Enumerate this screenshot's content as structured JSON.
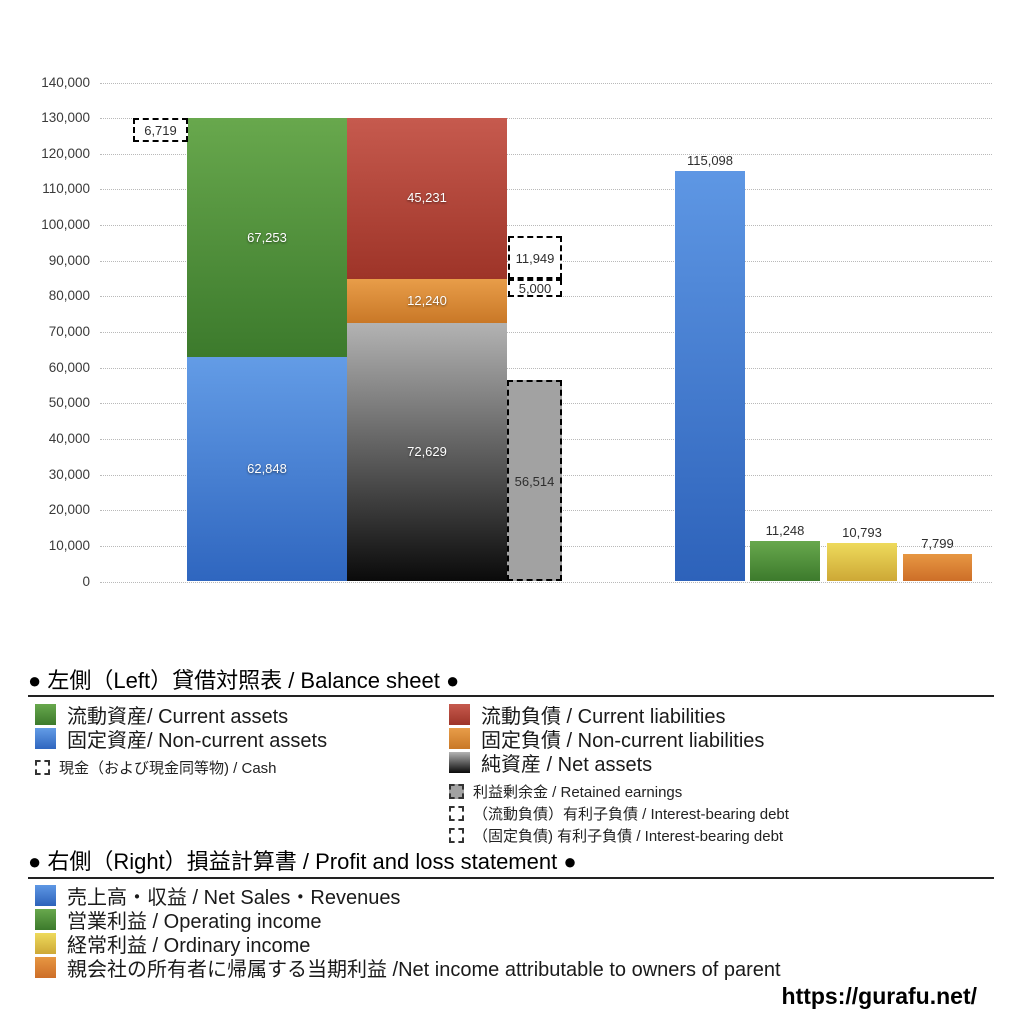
{
  "chart_data": {
    "type": "bar",
    "title": "",
    "y_axis": {
      "min": 0,
      "max": 140000,
      "step": 10000,
      "grid": "dotted",
      "tick_labels": [
        "0",
        "10,000",
        "20,000",
        "30,000",
        "40,000",
        "50,000",
        "60,000",
        "70,000",
        "80,000",
        "90,000",
        "100,000",
        "110,000",
        "120,000",
        "130,000",
        "140,000"
      ]
    },
    "balance_sheet": {
      "assets_stack_bottom_to_top": [
        {
          "key": "non_current_assets",
          "value": 62848
        },
        {
          "key": "current_assets",
          "value": 67253
        }
      ],
      "liabilities_stack_bottom_to_top": [
        {
          "key": "net_assets",
          "value": 72629
        },
        {
          "key": "non_current_liabilities",
          "value": 12240
        },
        {
          "key": "current_liabilities",
          "value": 45231
        }
      ],
      "annotations": [
        {
          "key": "cash",
          "value": 6719
        },
        {
          "key": "interest_bearing_debt_current",
          "value": 11949
        },
        {
          "key": "interest_bearing_debt_non_current",
          "value": 5000
        },
        {
          "key": "retained_earnings",
          "value": 56514
        }
      ]
    },
    "profit_and_loss": [
      {
        "key": "net_sales",
        "value": 115098
      },
      {
        "key": "operating_income",
        "value": 11248
      },
      {
        "key": "ordinary_income",
        "value": 10793
      },
      {
        "key": "net_income_parent",
        "value": 7799
      }
    ]
  },
  "colors": {
    "current_assets": [
      "#68a84d",
      "#3c7a2c"
    ],
    "non_current_assets": [
      "#639ce6",
      "#2f66bf"
    ],
    "current_liabilities": [
      "#c65a4e",
      "#9e3428"
    ],
    "non_current_liabilities": [
      "#e89d49",
      "#c97827"
    ],
    "net_assets": [
      "#b3b3b3",
      "#0a0a0a"
    ],
    "retained_earnings": [
      "#a2a2a2",
      "#a2a2a2"
    ],
    "net_sales": [
      "#5e97e4",
      "#2d62ba"
    ],
    "operating_income": [
      "#68a84d",
      "#3c7a2c"
    ],
    "ordinary_income": [
      "#eeda5c",
      "#cda836"
    ],
    "net_income_parent": [
      "#e79742",
      "#cd6e28"
    ]
  },
  "legend_balance_sheet": {
    "header": "● 左側（Left）貸借対照表 / Balance sheet ●",
    "left_items": [
      {
        "swatch": "current_assets",
        "label": "流動資産/ Current assets",
        "small": false
      },
      {
        "swatch": "non_current_assets",
        "label": "固定資産/ Non-current assets",
        "small": false
      },
      {
        "swatch": "dashed",
        "label": "現金（および現金同等物) / Cash",
        "small": true
      }
    ],
    "right_items": [
      {
        "swatch": "current_liabilities",
        "label": "流動負債 /  Current liabilities",
        "small": false
      },
      {
        "swatch": "non_current_liabilities",
        "label": "固定負債 / Non-current liabilities",
        "small": false
      },
      {
        "swatch": "net_assets",
        "label": "純資産 / Net assets",
        "small": false
      },
      {
        "swatch": "retained_earnings",
        "label": "利益剰余金 / Retained earnings",
        "small": true
      },
      {
        "swatch": "dashed",
        "label": "（流動負債）有利子負債 / Interest-bearing debt",
        "small": true
      },
      {
        "swatch": "dashed",
        "label": "（固定負債) 有利子負債 / Interest-bearing debt",
        "small": true
      }
    ]
  },
  "legend_pnl": {
    "header": "● 右側（Right）損益計算書 / Profit and loss statement ●",
    "items": [
      {
        "swatch": "net_sales",
        "label": "売上高・収益 / Net Sales・Revenues",
        "small": false
      },
      {
        "swatch": "operating_income",
        "label": "営業利益 / Operating income",
        "small": false
      },
      {
        "swatch": "ordinary_income",
        "label": "経常利益 / Ordinary income",
        "small": false
      },
      {
        "swatch": "net_income_parent",
        "label": "親会社の所有者に帰属する当期利益 /Net income attributable to owners of parent",
        "small": false
      }
    ]
  },
  "footer": {
    "url": "https://gurafu.net/"
  }
}
